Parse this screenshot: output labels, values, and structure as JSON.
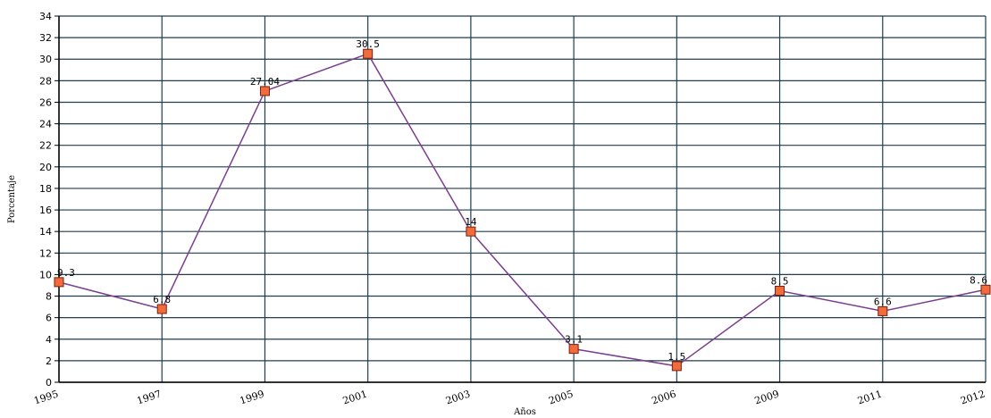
{
  "chart_data": {
    "type": "line",
    "categories": [
      "1995",
      "1997",
      "1999",
      "2001",
      "2003",
      "2005",
      "2006",
      "2009",
      "2011",
      "2012"
    ],
    "values": [
      9.3,
      6.8,
      27.04,
      30.5,
      14,
      3.1,
      1.5,
      8.5,
      6.6,
      8.6
    ],
    "data_labels": [
      "9.3",
      "6.8",
      "27.04",
      "30.5",
      "14",
      "3.1",
      "1.5",
      "8.5",
      "6.6",
      "8.6"
    ],
    "y_ticks": [
      "0",
      "2",
      "4",
      "6",
      "8",
      "10",
      "12",
      "14",
      "16",
      "18",
      "20",
      "22",
      "24",
      "26",
      "28",
      "30",
      "32",
      "34"
    ],
    "title": "",
    "xlabel": "Años",
    "ylabel": "Porcentaje",
    "ylim": [
      0,
      34
    ],
    "grid": true,
    "colors": {
      "line": "#7b3f8f",
      "marker_fill": "#f26b3a",
      "marker_stroke": "#7a1f10",
      "grid": "#1f3f4f",
      "axis": "#000000"
    }
  }
}
